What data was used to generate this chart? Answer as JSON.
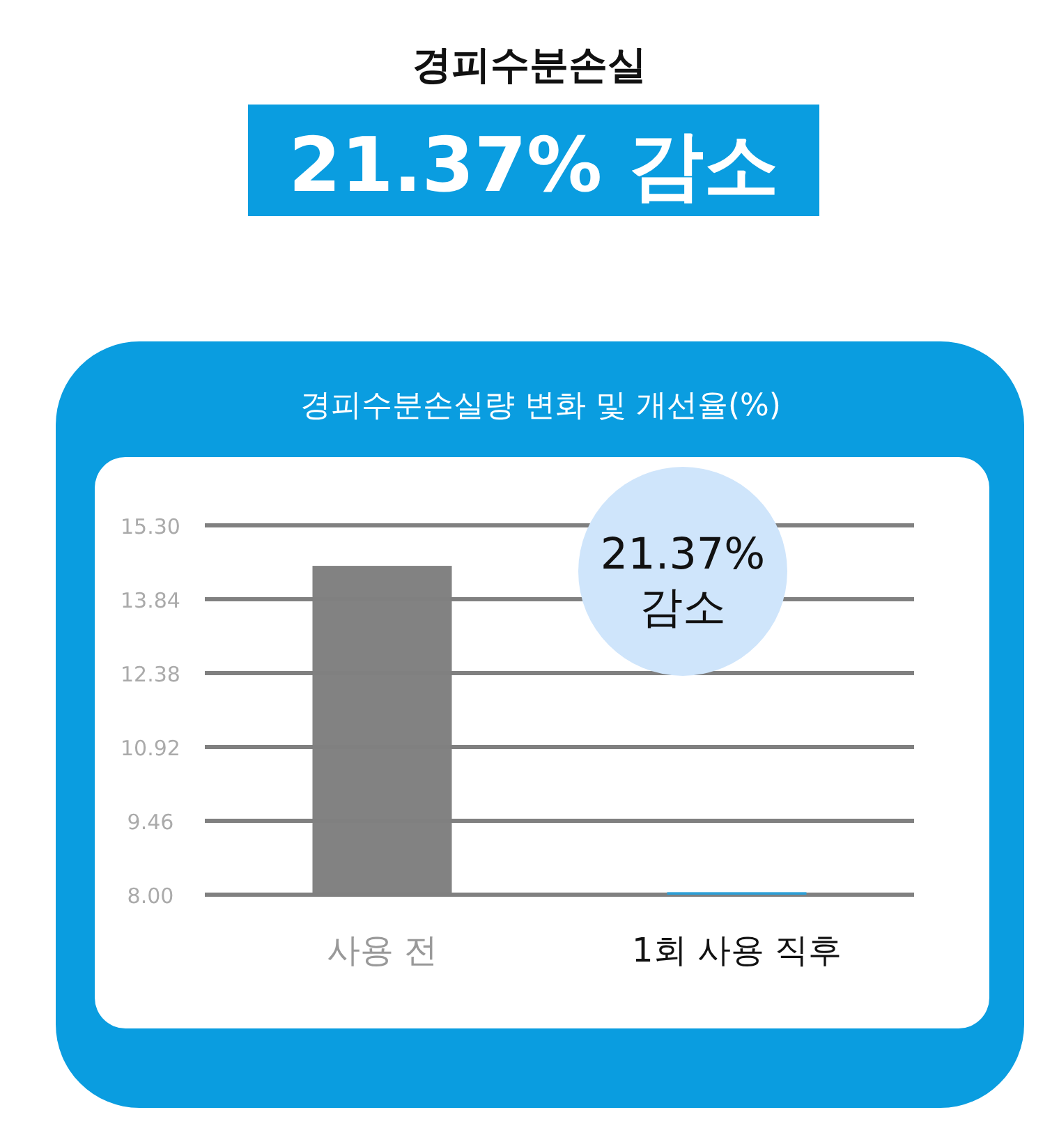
{
  "chart_data": {
    "type": "bar",
    "title": "경피수분손실",
    "subtitle": "21.37% 감소",
    "annotations": [
      "경피수분손실량 변화 및 개선율(%)",
      "21.37% 감소"
    ],
    "categories": [
      "사용 전",
      "1회 사용 직후"
    ],
    "values": [
      14.5,
      8.05
    ],
    "colors": [
      "#808080",
      "#2a9fd8"
    ],
    "ylim": [
      8,
      15.3
    ],
    "yticks": [
      {
        "value": 8,
        "label": "8.00"
      },
      9.46,
      10.92,
      12.38,
      13.84,
      {
        "value": 15.3,
        "label": "15.30"
      }
    ],
    "grid": "y"
  }
}
